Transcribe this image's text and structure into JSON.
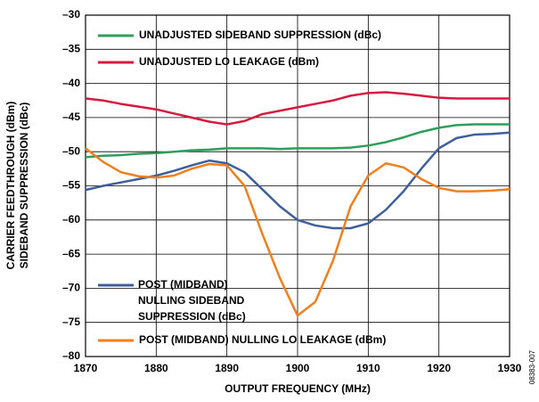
{
  "chart_data": {
    "type": "line",
    "xlabel": "OUTPUT FREQUENCY (MHz)",
    "ylabel": [
      "CARRIER FEEDTHROUGH (dBm)",
      "SIDEBAND SUPPRESSION (dBc)"
    ],
    "annotation": "08383-007",
    "x": [
      1870,
      1872.5,
      1875,
      1877.5,
      1880,
      1882.5,
      1885,
      1887.5,
      1890,
      1892.5,
      1895,
      1897.5,
      1900,
      1902.5,
      1905,
      1907.5,
      1910,
      1912.5,
      1915,
      1917.5,
      1920,
      1922.5,
      1925,
      1927.5,
      1930
    ],
    "series": [
      {
        "name": "UNADJUSTED SIDEBAND SUPPRESSION (dBc)",
        "color": "#2e9e5b",
        "values": [
          -50.8,
          -50.6,
          -50.5,
          -50.3,
          -50.2,
          -50,
          -49.8,
          -49.7,
          -49.5,
          -49.5,
          -49.5,
          -49.6,
          -49.5,
          -49.5,
          -49.5,
          -49.4,
          -49.1,
          -48.6,
          -47.9,
          -47.1,
          -46.5,
          -46.1,
          -46,
          -46,
          -46
        ]
      },
      {
        "name": "UNADJUSTED LO LEAKAGE (dBm)",
        "color": "#d7193f",
        "values": [
          -42.2,
          -42.5,
          -43,
          -43.4,
          -43.8,
          -44.4,
          -45,
          -45.6,
          -46,
          -45.5,
          -44.5,
          -44,
          -43.5,
          -43,
          -42.5,
          -41.8,
          -41.4,
          -41.3,
          -41.5,
          -41.8,
          -42.1,
          -42.2,
          -42.2,
          -42.2,
          -42.2
        ]
      },
      {
        "name": "POST (MIDBAND) NULLING SIDEBAND SUPPRESSION (dBc)",
        "color": "#3e5f9b",
        "values": [
          -55.6,
          -55,
          -54.5,
          -54,
          -53.5,
          -52.8,
          -52,
          -51.3,
          -51.7,
          -53,
          -55.5,
          -58,
          -60,
          -60.8,
          -61.2,
          -61.2,
          -60.5,
          -58.5,
          -55.8,
          -52.5,
          -49.5,
          -48,
          -47.5,
          -47.4,
          -47.2
        ]
      },
      {
        "name": "POST (MIDBAND) NULLING LO LEAKAGE (dBm)",
        "color": "#f07f1e",
        "values": [
          -49.5,
          -51.5,
          -53,
          -53.6,
          -53.8,
          -53.5,
          -52.5,
          -51.8,
          -52,
          -55,
          -62,
          -68.5,
          -74,
          -72,
          -66,
          -58,
          -53.5,
          -51.7,
          -52.3,
          -54,
          -55.3,
          -55.8,
          -55.8,
          -55.7,
          -55.5
        ]
      }
    ],
    "xlim": [
      1870,
      1930
    ],
    "xticks": [
      1870,
      1880,
      1890,
      1900,
      1910,
      1920,
      1930
    ],
    "ylim": [
      -80,
      -30
    ],
    "yticks": [
      {
        "value": -80,
        "label": "–80"
      },
      {
        "value": -75,
        "label": "–75"
      },
      {
        "value": -70,
        "label": "–70"
      },
      {
        "value": -65,
        "label": "–65"
      },
      {
        "value": -60,
        "label": "–60"
      },
      {
        "value": -55,
        "label": "–55"
      },
      {
        "value": -50,
        "label": "–50"
      },
      {
        "value": -45,
        "label": "–45"
      },
      {
        "value": -40,
        "label": "–40"
      },
      {
        "value": -35,
        "label": "–35"
      },
      {
        "value": -30,
        "label": "–30"
      }
    ],
    "grid": true
  }
}
